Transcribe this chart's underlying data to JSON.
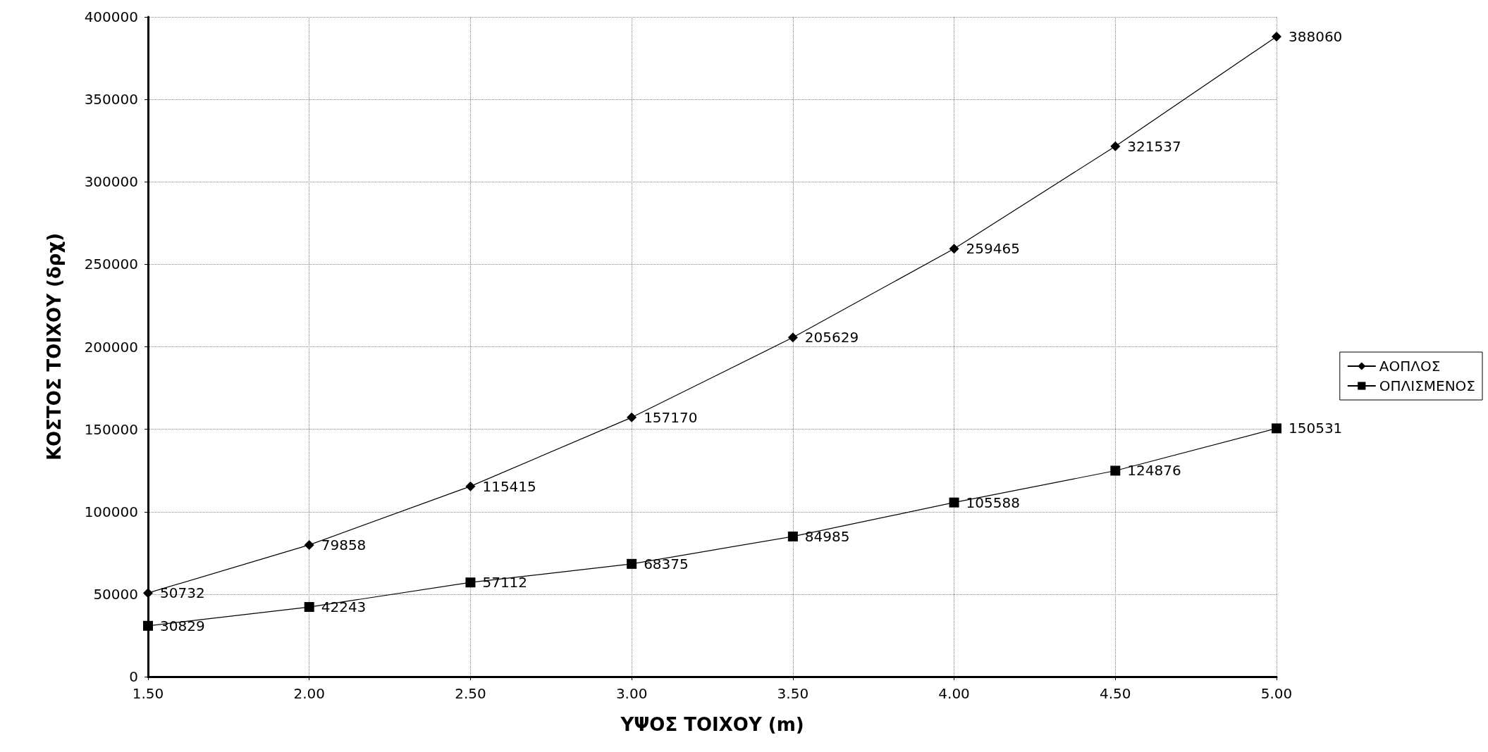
{
  "chart_data": {
    "type": "line",
    "xlabel": "ΥΨΟΣ ΤΟΙΧΟΥ (m)",
    "ylabel": "ΚΟΣΤΟΣ ΤΟΙΧΟΥ (δρχ)",
    "x": [
      1.5,
      2.0,
      2.5,
      3.0,
      3.5,
      4.0,
      4.5,
      5.0
    ],
    "series": [
      {
        "name": "ΑΟΠΛΟΣ",
        "color": "#000000",
        "marker": "diamond",
        "values": [
          50732,
          79858,
          115415,
          157170,
          205629,
          259465,
          321537,
          388060
        ]
      },
      {
        "name": "ΟΠΛΙΣΜΕΝΟΣ",
        "color": "#000000",
        "marker": "square",
        "values": [
          30829,
          42243,
          57112,
          68375,
          84985,
          105588,
          124876,
          150531
        ]
      }
    ],
    "xlim": [
      1.5,
      5.0
    ],
    "xticks": [
      {
        "value": 1.5,
        "label": "1.50"
      },
      {
        "value": 2.0,
        "label": "2.00"
      },
      {
        "value": 2.5,
        "label": "2.50"
      },
      {
        "value": 3.0,
        "label": "3.00"
      },
      {
        "value": 3.5,
        "label": "3.50"
      },
      {
        "value": 4.0,
        "label": "4.00"
      },
      {
        "value": 4.5,
        "label": "4.50"
      },
      {
        "value": 5.0,
        "label": "5.00"
      }
    ],
    "ylim": [
      0,
      400000
    ],
    "yticks": [
      0,
      50000,
      100000,
      150000,
      200000,
      250000,
      300000,
      350000,
      400000
    ],
    "grid": true,
    "legend": "right",
    "data_labels": true,
    "line_style": "solid"
  }
}
